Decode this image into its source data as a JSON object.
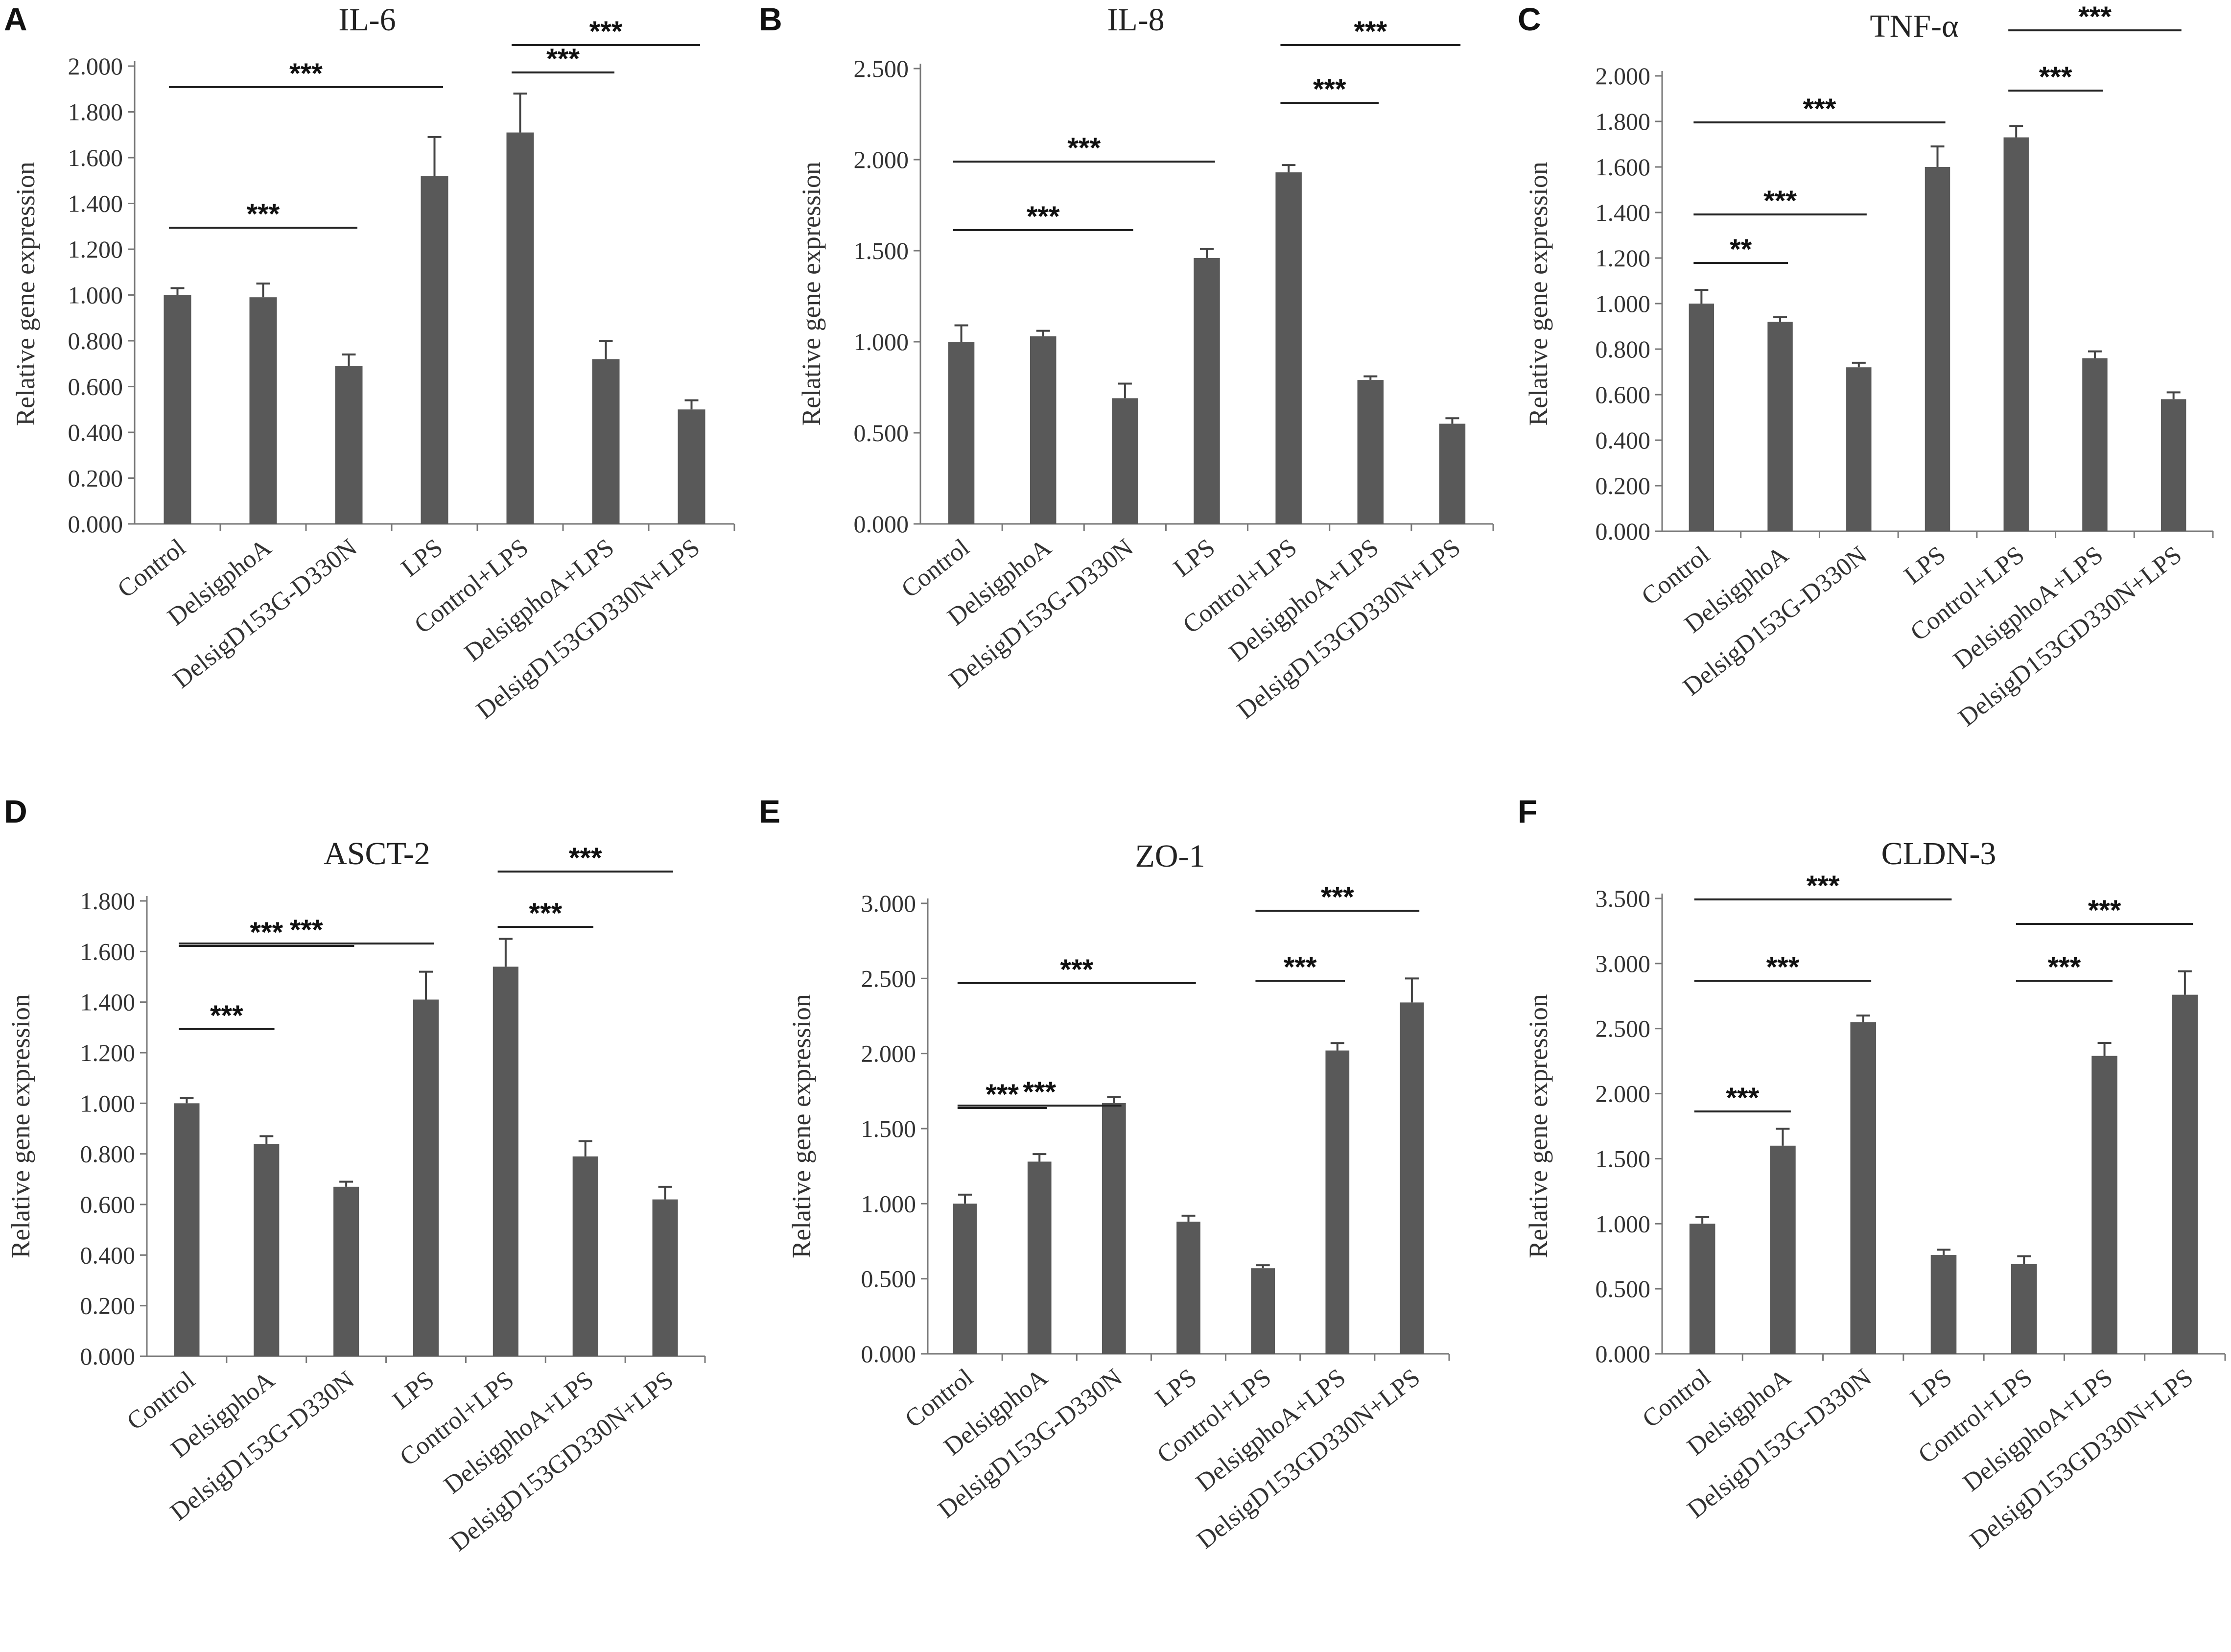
{
  "figure": {
    "categories": [
      "Control",
      "DelsigphoA",
      "DelsigD153G-D330N",
      "LPS",
      "Control+LPS",
      "DelsigphoA+LPS",
      "DelsigD153GD330N+LPS"
    ],
    "ylabel": "Relative gene expression"
  },
  "chart_data": [
    {
      "type": "bar",
      "panel": "A",
      "title": "IL-6",
      "ylabel": "Relative gene expression",
      "categories": [
        "Control",
        "DelsigphoA",
        "DelsigD153G-D330N",
        "LPS",
        "Control+LPS",
        "DelsigphoA+LPS",
        "DelsigD153GD330N+LPS"
      ],
      "values": [
        1.0,
        0.99,
        0.69,
        1.52,
        1.71,
        0.72,
        0.5
      ],
      "errors": [
        0.03,
        0.06,
        0.05,
        0.17,
        0.17,
        0.08,
        0.04
      ],
      "ylim": [
        0,
        2.0
      ],
      "yticks": [
        "0.000",
        "0.200",
        "0.400",
        "0.600",
        "0.800",
        "1.000",
        "1.200",
        "1.400",
        "1.600",
        "1.800",
        "2.000"
      ],
      "significance": [
        {
          "from": 0,
          "to": 2,
          "label": "***"
        },
        {
          "from": 0,
          "to": 3,
          "label": "***"
        },
        {
          "from": 4,
          "to": 5,
          "label": "***"
        },
        {
          "from": 4,
          "to": 6,
          "label": "***"
        }
      ]
    },
    {
      "type": "bar",
      "panel": "B",
      "title": "IL-8",
      "ylabel": "Relative gene expression",
      "categories": [
        "Control",
        "DelsigphoA",
        "DelsigD153G-D330N",
        "LPS",
        "Control+LPS",
        "DelsigphoA+LPS",
        "DelsigD153GD330N+LPS"
      ],
      "values": [
        1.0,
        1.03,
        0.69,
        1.46,
        1.93,
        0.79,
        0.55
      ],
      "errors": [
        0.09,
        0.03,
        0.08,
        0.05,
        0.04,
        0.02,
        0.03
      ],
      "ylim": [
        0,
        2.5
      ],
      "yticks": [
        "0.000",
        "0.500",
        "1.000",
        "1.500",
        "2.000",
        "2.500"
      ],
      "significance": [
        {
          "from": 0,
          "to": 2,
          "label": "***"
        },
        {
          "from": 0,
          "to": 3,
          "label": "***"
        },
        {
          "from": 4,
          "to": 5,
          "label": "***"
        },
        {
          "from": 4,
          "to": 6,
          "label": "***"
        }
      ]
    },
    {
      "type": "bar",
      "panel": "C",
      "title": "TNF-α",
      "ylabel": "Relative gene expression",
      "categories": [
        "Control",
        "DelsigphoA",
        "DelsigD153G-D330N",
        "LPS",
        "Control+LPS",
        "DelsigphoA+LPS",
        "DelsigD153GD330N+LPS"
      ],
      "values": [
        1.0,
        0.92,
        0.72,
        1.6,
        1.73,
        0.76,
        0.58
      ],
      "errors": [
        0.06,
        0.02,
        0.02,
        0.09,
        0.05,
        0.03,
        0.03
      ],
      "ylim": [
        0,
        2.0
      ],
      "yticks": [
        "0.000",
        "0.200",
        "0.400",
        "0.600",
        "0.800",
        "1.000",
        "1.200",
        "1.400",
        "1.600",
        "1.800",
        "2.000"
      ],
      "significance": [
        {
          "from": 0,
          "to": 1,
          "label": "**"
        },
        {
          "from": 0,
          "to": 2,
          "label": "***"
        },
        {
          "from": 0,
          "to": 3,
          "label": "***"
        },
        {
          "from": 4,
          "to": 5,
          "label": "***"
        },
        {
          "from": 4,
          "to": 6,
          "label": "***"
        }
      ]
    },
    {
      "type": "bar",
      "panel": "D",
      "title": "ASCT-2",
      "ylabel": "Relative gene expression",
      "categories": [
        "Control",
        "DelsigphoA",
        "DelsigD153G-D330N",
        "LPS",
        "Control+LPS",
        "DelsigphoA+LPS",
        "DelsigD153GD330N+LPS"
      ],
      "values": [
        1.0,
        0.84,
        0.67,
        1.41,
        1.54,
        0.79,
        0.62
      ],
      "errors": [
        0.02,
        0.03,
        0.02,
        0.11,
        0.11,
        0.06,
        0.05
      ],
      "ylim": [
        0,
        1.8
      ],
      "yticks": [
        "0.000",
        "0.200",
        "0.400",
        "0.600",
        "0.800",
        "1.000",
        "1.200",
        "1.400",
        "1.600",
        "1.800"
      ],
      "significance": [
        {
          "from": 0,
          "to": 1,
          "label": "***"
        },
        {
          "from": 0,
          "to": 2,
          "label": "***"
        },
        {
          "from": 0,
          "to": 3,
          "label": "***"
        },
        {
          "from": 4,
          "to": 5,
          "label": "***"
        },
        {
          "from": 4,
          "to": 6,
          "label": "***"
        }
      ]
    },
    {
      "type": "bar",
      "panel": "E",
      "title": "ZO-1",
      "ylabel": "Relative gene expression",
      "categories": [
        "Control",
        "DelsigphoA",
        "DelsigD153G-D330N",
        "LPS",
        "Control+LPS",
        "DelsigphoA+LPS",
        "DelsigD153GD330N+LPS"
      ],
      "values": [
        1.0,
        1.28,
        1.67,
        0.88,
        0.57,
        2.02,
        2.34
      ],
      "errors": [
        0.06,
        0.05,
        0.04,
        0.04,
        0.02,
        0.05,
        0.16
      ],
      "ylim": [
        0,
        3.0
      ],
      "yticks": [
        "0.000",
        "0.500",
        "1.000",
        "1.500",
        "2.000",
        "2.500",
        "3.000"
      ],
      "significance": [
        {
          "from": 0,
          "to": 1,
          "label": "***"
        },
        {
          "from": 0,
          "to": 2,
          "label": "***"
        },
        {
          "from": 0,
          "to": 3,
          "label": "***"
        },
        {
          "from": 4,
          "to": 5,
          "label": "***"
        },
        {
          "from": 4,
          "to": 6,
          "label": "***"
        }
      ]
    },
    {
      "type": "bar",
      "panel": "F",
      "title": "CLDN-3",
      "ylabel": "Relative gene expression",
      "categories": [
        "Control",
        "DelsigphoA",
        "DelsigD153G-D330N",
        "LPS",
        "Control+LPS",
        "DelsigphoA+LPS",
        "DelsigD153GD330N+LPS"
      ],
      "values": [
        1.0,
        1.6,
        2.55,
        0.76,
        0.69,
        2.29,
        2.76
      ],
      "errors": [
        0.05,
        0.13,
        0.05,
        0.04,
        0.06,
        0.1,
        0.18
      ],
      "ylim": [
        0,
        3.5
      ],
      "yticks": [
        "0.000",
        "0.500",
        "1.000",
        "1.500",
        "2.000",
        "2.500",
        "3.000",
        "3.500"
      ],
      "significance": [
        {
          "from": 0,
          "to": 1,
          "label": "***"
        },
        {
          "from": 0,
          "to": 2,
          "label": "***"
        },
        {
          "from": 0,
          "to": 3,
          "label": "***"
        },
        {
          "from": 4,
          "to": 5,
          "label": "***"
        },
        {
          "from": 4,
          "to": 6,
          "label": "***"
        }
      ]
    }
  ]
}
